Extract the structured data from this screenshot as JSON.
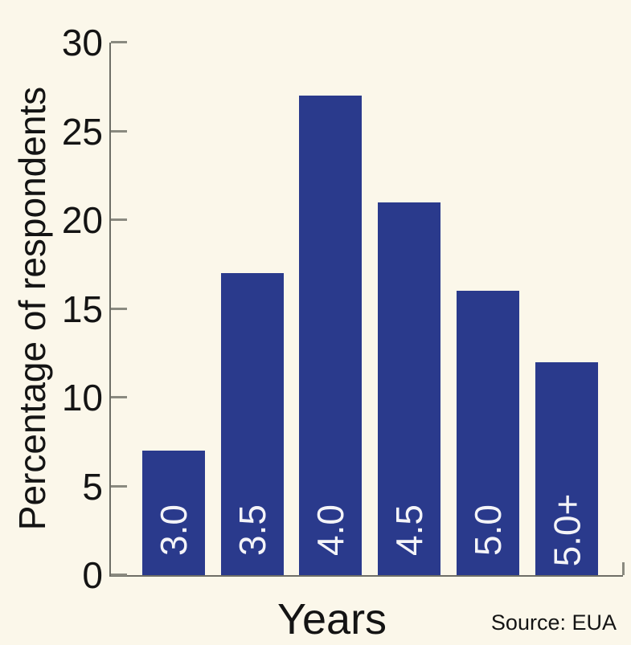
{
  "chart_data": {
    "type": "bar",
    "categories": [
      "3.0",
      "3.5",
      "4.0",
      "4.5",
      "5.0",
      "5.0+"
    ],
    "values": [
      7,
      17,
      27,
      21,
      16,
      12
    ],
    "title": "",
    "xlabel": "Years",
    "ylabel": "Percentage of respondents",
    "ylim": [
      0,
      30
    ],
    "yticks": [
      0,
      5,
      10,
      15,
      20,
      25,
      30
    ],
    "grid": false,
    "legend_position": "none",
    "bar_color": "#2a3a8c",
    "bar_label_color": "#f4f4f8",
    "background_color": "#fbf7ea",
    "axis_color": "#6e6e66",
    "tick_color": "#8a8a80",
    "text_color": "#141414",
    "source_note": "Source: EUA"
  }
}
